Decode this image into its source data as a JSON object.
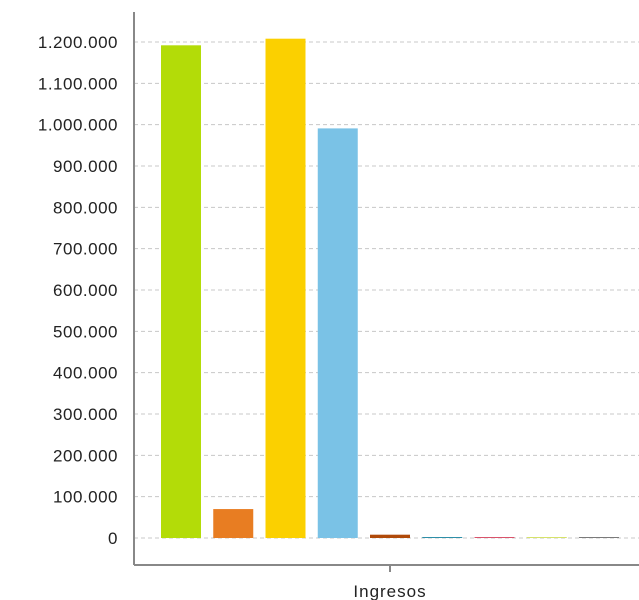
{
  "chart_data": {
    "type": "bar",
    "categories": [
      "Ingresos"
    ],
    "xlabel": "",
    "ylabel": "",
    "title": "",
    "ylim": [
      0,
      1200000
    ],
    "yticks": [
      0,
      100000,
      200000,
      300000,
      400000,
      500000,
      600000,
      700000,
      800000,
      900000,
      1000000,
      1100000,
      1200000
    ],
    "ytick_labels": [
      "0",
      "100.000",
      "200.000",
      "300.000",
      "400.000",
      "500.000",
      "600.000",
      "700.000",
      "800.000",
      "900.000",
      "1.000.000",
      "1.100.000",
      "1.200.000"
    ],
    "grid": true,
    "legend": "none",
    "series": [
      {
        "values": [
          1192000
        ],
        "color": "#b3dc08"
      },
      {
        "values": [
          70000
        ],
        "color": "#e87d22"
      },
      {
        "values": [
          1208000
        ],
        "color": "#fbd000"
      },
      {
        "values": [
          991000
        ],
        "color": "#7ac2e6"
      },
      {
        "values": [
          8000
        ],
        "color": "#b04a0a"
      },
      {
        "values": [
          1500
        ],
        "color": "#2e8fa8"
      },
      {
        "values": [
          1000
        ],
        "color": "#d9536b"
      },
      {
        "values": [
          1000
        ],
        "color": "#d6e26a"
      },
      {
        "values": [
          1000
        ],
        "color": "#7a7a7a"
      }
    ]
  }
}
